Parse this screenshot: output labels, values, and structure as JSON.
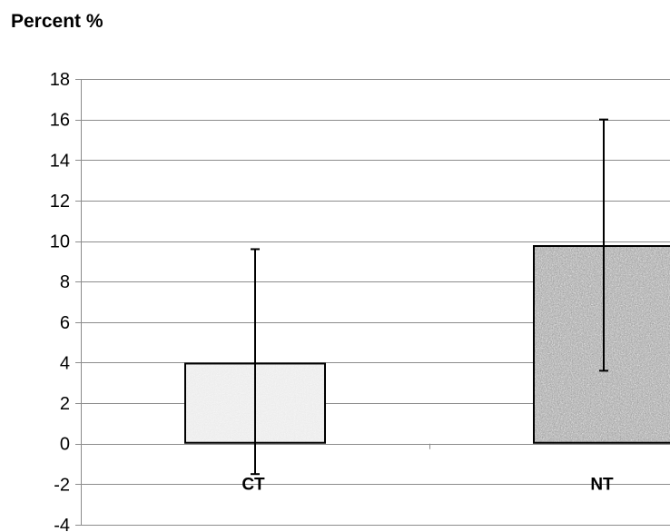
{
  "chart_data": {
    "type": "bar",
    "title": "",
    "ylabel": "Percent %",
    "xlabel": "",
    "categories": [
      "CT",
      "NT"
    ],
    "series": [
      {
        "values": [
          4.0,
          9.8
        ],
        "error_low": [
          -1.5,
          3.6
        ],
        "error_high": [
          9.6,
          16.0
        ]
      }
    ],
    "ylim": [
      -4,
      18
    ],
    "yticks": [
      -4,
      -2,
      0,
      2,
      4,
      6,
      8,
      10,
      12,
      14,
      16,
      18
    ],
    "ytick_labels": [
      "-4",
      "-2",
      "0",
      "2",
      "4",
      "6",
      "8",
      "10",
      "12",
      "14",
      "16",
      "18"
    ],
    "grid": true,
    "legend": "none",
    "colors": {
      "grid": "#8c8c8c",
      "axis": "#8c8c8c",
      "bar_outline": "#000000",
      "error_bar": "#000000",
      "ct_fill": "#ececec",
      "nt_fill": "#a9a9a9"
    },
    "fill_patterns": [
      "light-speckle",
      "dark-speckle"
    ]
  }
}
